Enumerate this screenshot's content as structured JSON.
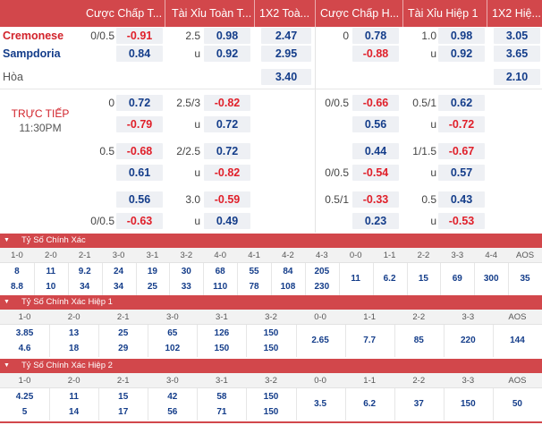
{
  "header": {
    "cols": [
      "Cược Chấp T...",
      "Tài Xỉu Toàn T...",
      "1X2 Toà...",
      "Cược Chấp H...",
      "Tài Xỉu Hiệp 1",
      "1X2 Hiệ..."
    ]
  },
  "teams": {
    "home": "Cremonese",
    "away": "Sampdoria",
    "draw": "Hòa"
  },
  "live": {
    "status": "TRỰC TIẾP",
    "time": "11:30PM"
  },
  "rows": [
    {
      "top": 0,
      "h": 20,
      "c": [
        "0/0.5",
        "-0.91",
        "2.5",
        "0.98",
        "2.47",
        "0",
        "0.78",
        "1.0",
        "0.98",
        "3.05"
      ]
    },
    {
      "top": 20,
      "h": 20,
      "c": [
        "",
        "0.84",
        "u",
        "0.92",
        "2.95",
        "",
        "-0.88",
        "u",
        "0.92",
        "3.65"
      ]
    },
    {
      "top": 46,
      "h": 20,
      "c": [
        "",
        "",
        "",
        "",
        "3.40",
        "",
        "",
        "",
        "",
        "2.10"
      ]
    },
    {
      "top": 76,
      "h": 18,
      "c": [
        "0",
        "0.72",
        "2.5/3",
        "-0.82",
        "",
        "0/0.5",
        "-0.66",
        "0.5/1",
        "0.62",
        ""
      ]
    },
    {
      "top": 100,
      "h": 18,
      "c": [
        "",
        "-0.79",
        "u",
        "0.72",
        "",
        "",
        "0.56",
        "u",
        "-0.72",
        ""
      ]
    },
    {
      "top": 130,
      "h": 18,
      "c": [
        "0.5",
        "-0.68",
        "2/2.5",
        "0.72",
        "",
        "",
        "0.44",
        "1/1.5",
        "-0.67",
        ""
      ]
    },
    {
      "top": 154,
      "h": 18,
      "c": [
        "",
        "0.61",
        "u",
        "-0.82",
        "",
        "0/0.5",
        "-0.54",
        "u",
        "0.57",
        ""
      ]
    },
    {
      "top": 184,
      "h": 18,
      "c": [
        "",
        "0.56",
        "3.0",
        "-0.59",
        "",
        "0.5/1",
        "-0.33",
        "0.5",
        "0.43",
        ""
      ]
    },
    {
      "top": 208,
      "h": 18,
      "c": [
        "0/0.5",
        "-0.63",
        "u",
        "0.49",
        "",
        "",
        "0.23",
        "u",
        "-0.53",
        ""
      ]
    }
  ],
  "sections": [
    {
      "title": "Tỷ Số Chính Xác",
      "labels": [
        "1-0",
        "2-0",
        "2-1",
        "3-0",
        "3-1",
        "3-2",
        "4-0",
        "4-1",
        "4-2",
        "4-3",
        "0-0",
        "1-1",
        "2-2",
        "3-3",
        "4-4",
        "AOS"
      ],
      "home": [
        "8",
        "11",
        "9.2",
        "24",
        "19",
        "30",
        "68",
        "55",
        "84",
        "205"
      ],
      "away": [
        "8.8",
        "10",
        "34",
        "34",
        "25",
        "33",
        "110",
        "78",
        "108",
        "230"
      ],
      "mid": [
        "11",
        "6.2",
        "15",
        "69",
        "300",
        "35"
      ]
    },
    {
      "title": "Tỷ Số Chính Xác Hiệp 1",
      "labels": [
        "1-0",
        "2-0",
        "2-1",
        "3-0",
        "3-1",
        "3-2",
        "0-0",
        "1-1",
        "2-2",
        "3-3",
        "AOS"
      ],
      "home": [
        "3.85",
        "13",
        "25",
        "65",
        "126",
        "150"
      ],
      "away": [
        "4.6",
        "18",
        "29",
        "102",
        "150",
        "150"
      ],
      "mid": [
        "2.65",
        "7.7",
        "85",
        "220",
        "144"
      ]
    },
    {
      "title": "Tỷ Số Chính Xác Hiệp 2",
      "labels": [
        "1-0",
        "2-0",
        "2-1",
        "3-0",
        "3-1",
        "3-2",
        "0-0",
        "1-1",
        "2-2",
        "3-3",
        "AOS"
      ],
      "home": [
        "4.25",
        "11",
        "15",
        "42",
        "58",
        "150"
      ],
      "away": [
        "5",
        "14",
        "17",
        "56",
        "71",
        "150"
      ],
      "mid": [
        "3.5",
        "6.2",
        "37",
        "150",
        "50"
      ]
    }
  ]
}
